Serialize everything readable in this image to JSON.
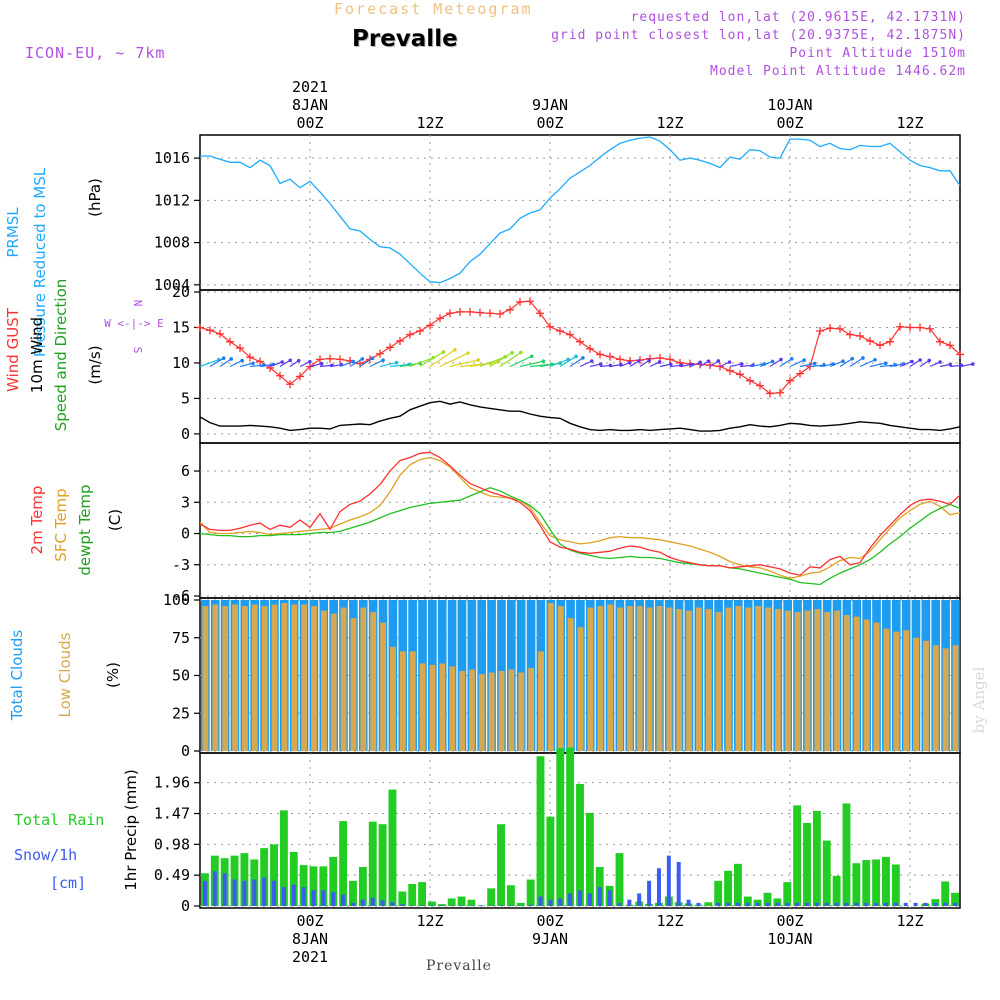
{
  "header": {
    "supertitle": "Forecast Meteogram",
    "station": "Prevalle",
    "model": "ICON-EU, ~ 7km",
    "info_requested": "requested lon,lat (20.9615E, 42.1731N)",
    "info_grid": "grid point closest lon,lat (20.9375E, 42.1875N)",
    "info_altitude": "Point Altitude 1510m",
    "info_model_altitude": "Model Point Altitude 1446.62m",
    "footer": "Prevalle",
    "watermark": "by Angel"
  },
  "colors": {
    "pressure": "#1eaaff",
    "gust": "#ff3030",
    "wind": "#000000",
    "temp": "#ff3030",
    "sfc": "#e0a020",
    "dewpt": "#20c020",
    "clouds_total": "#1e9cf0",
    "clouds_low": "#d8a850",
    "rain": "#22cc22",
    "snow": "#3a5cf0",
    "label_purple": "#b050e0",
    "grid": "#999999"
  },
  "time_axis": {
    "hours": [
      -11,
      65
    ],
    "top_ticks": [
      {
        "h": 0,
        "lines": [
          "2021",
          "8JAN",
          "00Z"
        ]
      },
      {
        "h": 12,
        "lines": [
          "12Z"
        ]
      },
      {
        "h": 24,
        "lines": [
          "9JAN",
          "00Z"
        ]
      },
      {
        "h": 36,
        "lines": [
          "12Z"
        ]
      },
      {
        "h": 48,
        "lines": [
          "10JAN",
          "00Z"
        ]
      },
      {
        "h": 60,
        "lines": [
          "12Z"
        ]
      }
    ],
    "bottom_ticks": [
      {
        "h": 0,
        "lines": [
          "00Z",
          "8JAN",
          "2021"
        ]
      },
      {
        "h": 12,
        "lines": [
          "12Z"
        ]
      },
      {
        "h": 24,
        "lines": [
          "00Z",
          "9JAN"
        ]
      },
      {
        "h": 36,
        "lines": [
          "12Z"
        ]
      },
      {
        "h": 48,
        "lines": [
          "00Z",
          "10JAN"
        ]
      },
      {
        "h": 60,
        "lines": [
          "12Z"
        ]
      }
    ]
  },
  "chart_data": [
    {
      "type": "line",
      "id": "pressure",
      "title": "PRMSL Pressure Reduced to MSL",
      "label_lines": [
        "PRMSL",
        "Pressure Reduced to MSL"
      ],
      "ylabel": "(hPa)",
      "ylim": [
        1003.7,
        1018
      ],
      "yticks": [
        1004,
        1008,
        1012,
        1016
      ],
      "series": [
        {
          "name": "PRMSL",
          "x": [
            -11,
            -10,
            -9,
            -8,
            -7,
            -6,
            -5,
            -4,
            -3,
            -2,
            -1,
            0,
            1,
            2,
            3,
            4,
            5,
            6,
            7,
            8,
            9,
            10,
            11,
            12,
            13,
            14,
            15,
            16,
            17,
            18,
            19,
            20,
            21,
            22,
            23,
            24,
            25,
            26,
            27,
            28,
            29,
            30,
            31,
            32,
            33,
            34,
            35,
            36,
            37,
            38,
            39,
            40,
            41,
            42,
            43,
            44,
            45,
            46,
            47,
            48,
            49,
            50,
            51,
            52,
            53,
            54,
            55,
            56,
            57,
            58,
            59,
            60,
            61,
            62,
            63,
            64,
            65
          ],
          "values": [
            1016.2,
            1016.2,
            1015.9,
            1015.6,
            1015.6,
            1015.1,
            1015.8,
            1015.3,
            1013.6,
            1014.0,
            1013.2,
            1013.8,
            1012.8,
            1011.7,
            1010.5,
            1009.3,
            1009.1,
            1008.3,
            1007.6,
            1007.5,
            1006.9,
            1006.0,
            1005.1,
            1004.3,
            1004.2,
            1004.6,
            1005.1,
            1006.2,
            1006.9,
            1007.9,
            1008.9,
            1009.3,
            1010.3,
            1010.8,
            1011.1,
            1012.2,
            1013.1,
            1014.1,
            1014.7,
            1015.3,
            1016.1,
            1016.8,
            1017.4,
            1017.7,
            1017.9,
            1018.0,
            1017.6,
            1016.8,
            1015.8,
            1016.0,
            1015.8,
            1015.5,
            1015.1,
            1016.1,
            1015.9,
            1016.8,
            1016.7,
            1016.1,
            1016.0,
            1017.8,
            1017.8,
            1017.7,
            1017.1,
            1017.4,
            1016.9,
            1016.8,
            1017.2,
            1017.1,
            1017.1,
            1017.4,
            1016.6,
            1015.8,
            1015.3,
            1015.1,
            1014.8,
            1014.8,
            1013.4
          ]
        }
      ]
    },
    {
      "type": "line",
      "id": "wind",
      "title": "Wind GUST / 10m Wind Speed and Direction",
      "label_lines": [
        "Wind GUST",
        "10m Wind",
        "Speed and Direction"
      ],
      "ylabel": "(m/s)",
      "ylim": [
        -1,
        20
      ],
      "yticks": [
        0,
        5,
        10,
        15,
        20
      ],
      "compass": [
        "N",
        "W <-|-> E",
        "S"
      ],
      "barb_baseline": 9.5,
      "series": [
        {
          "name": "Wind GUST",
          "values": [
            15.0,
            14.6,
            14.1,
            13.0,
            12.1,
            10.8,
            10.2,
            9.3,
            8.2,
            7.0,
            8.1,
            9.5,
            10.5,
            10.6,
            10.5,
            10.3,
            9.9,
            10.5,
            11.3,
            12.2,
            13.1,
            14.0,
            14.5,
            15.3,
            16.3,
            17.0,
            17.2,
            17.2,
            17.1,
            17.0,
            16.9,
            17.5,
            18.6,
            18.7,
            17.0,
            15.1,
            14.5,
            14.0,
            13.0,
            12.0,
            11.2,
            10.9,
            10.5,
            10.3,
            10.4,
            10.6,
            10.7,
            10.5,
            10.0,
            9.9,
            9.8,
            9.7,
            9.5,
            8.9,
            8.4,
            7.5,
            6.8,
            5.7,
            5.8,
            7.5,
            8.5,
            9.5,
            14.5,
            14.9,
            14.8,
            14.0,
            13.8,
            13.1,
            12.5,
            13.0,
            15.1,
            15.0,
            15.0,
            14.8,
            13.0,
            12.5,
            11.2
          ]
        },
        {
          "name": "10m Wind",
          "values": [
            2.4,
            1.6,
            1.1,
            1.1,
            1.1,
            1.2,
            1.1,
            1.0,
            0.8,
            0.5,
            0.6,
            0.8,
            0.8,
            0.7,
            1.2,
            1.3,
            1.4,
            1.3,
            1.8,
            2.2,
            2.5,
            3.4,
            3.9,
            4.4,
            4.6,
            4.2,
            4.5,
            4.1,
            3.8,
            3.6,
            3.4,
            3.2,
            3.2,
            2.8,
            2.5,
            2.3,
            2.2,
            1.5,
            1.0,
            0.6,
            0.5,
            0.6,
            0.5,
            0.5,
            0.6,
            0.5,
            0.6,
            0.7,
            0.8,
            0.6,
            0.4,
            0.4,
            0.5,
            0.8,
            1.0,
            1.3,
            1.1,
            1.0,
            1.2,
            1.5,
            1.4,
            1.2,
            1.1,
            1.2,
            1.3,
            1.5,
            1.7,
            1.6,
            1.5,
            1.2,
            1.0,
            0.8,
            0.6,
            0.6,
            0.5,
            0.7,
            1.0
          ]
        }
      ]
    },
    {
      "type": "line",
      "id": "temperature",
      "title": "2m Temp / SFC Temp / dewpt Temp",
      "label_lines": [
        "2m Temp",
        "SFC Temp",
        "dewpt Temp"
      ],
      "ylabel": "(C)",
      "ylim": [
        -6,
        8.5
      ],
      "yticks": [
        -6,
        -3,
        0,
        3,
        6
      ],
      "series": [
        {
          "name": "2m Temp",
          "values": [
            0.9,
            0.4,
            0.3,
            0.3,
            0.5,
            0.8,
            1.0,
            0.4,
            0.8,
            0.6,
            1.3,
            0.6,
            1.9,
            0.4,
            2.1,
            2.8,
            3.1,
            3.8,
            4.7,
            6.0,
            7.0,
            7.3,
            7.7,
            7.8,
            7.3,
            6.5,
            5.6,
            4.8,
            4.4,
            4.0,
            3.7,
            3.4,
            3.0,
            2.2,
            0.8,
            -0.8,
            -1.3,
            -1.5,
            -1.8,
            -1.9,
            -1.8,
            -1.7,
            -1.4,
            -1.2,
            -1.3,
            -1.6,
            -1.8,
            -2.3,
            -2.6,
            -2.8,
            -3.0,
            -3.1,
            -3.1,
            -3.3,
            -3.2,
            -3.1,
            -3.0,
            -3.2,
            -3.4,
            -3.8,
            -4.0,
            -3.2,
            -3.3,
            -2.5,
            -2.2,
            -3.0,
            -2.8,
            -1.4,
            -0.2,
            0.8,
            1.8,
            2.7,
            3.2,
            3.3,
            3.1,
            2.8,
            3.7
          ]
        },
        {
          "name": "SFC Temp",
          "values": [
            1.1,
            0.1,
            0.0,
            0.0,
            0.1,
            0.2,
            0.1,
            -0.1,
            0.0,
            0.1,
            0.2,
            0.3,
            0.4,
            0.5,
            0.9,
            1.3,
            1.6,
            2.0,
            2.7,
            4.0,
            5.6,
            6.6,
            7.1,
            7.3,
            7.0,
            6.4,
            5.4,
            4.4,
            4.0,
            3.6,
            3.5,
            3.4,
            3.2,
            2.5,
            1.1,
            -0.2,
            -0.6,
            -0.8,
            -1.0,
            -0.9,
            -0.7,
            -0.4,
            -0.3,
            -0.4,
            -0.4,
            -0.5,
            -0.6,
            -0.8,
            -1.0,
            -1.2,
            -1.5,
            -1.8,
            -2.2,
            -2.7,
            -3.0,
            -3.2,
            -3.3,
            -3.6,
            -4.0,
            -4.3,
            -4.1,
            -3.8,
            -3.7,
            -3.2,
            -2.6,
            -2.3,
            -2.4,
            -1.7,
            -0.6,
            0.5,
            1.5,
            2.2,
            2.8,
            3.1,
            2.6,
            1.8,
            2.0
          ]
        },
        {
          "name": "dewpt Temp",
          "values": [
            0.0,
            -0.1,
            -0.2,
            -0.2,
            -0.3,
            -0.3,
            -0.2,
            -0.2,
            -0.1,
            -0.1,
            -0.1,
            0.0,
            0.1,
            0.1,
            0.2,
            0.5,
            0.8,
            1.1,
            1.5,
            1.9,
            2.2,
            2.5,
            2.7,
            2.9,
            3.0,
            3.1,
            3.2,
            3.6,
            4.0,
            4.4,
            4.1,
            3.6,
            3.2,
            2.7,
            1.9,
            0.4,
            -1.0,
            -1.6,
            -1.9,
            -2.1,
            -2.3,
            -2.4,
            -2.3,
            -2.2,
            -2.3,
            -2.3,
            -2.4,
            -2.6,
            -2.8,
            -2.9,
            -3.0,
            -3.1,
            -3.1,
            -3.3,
            -3.4,
            -3.6,
            -3.8,
            -4.0,
            -4.2,
            -4.4,
            -4.7,
            -4.8,
            -4.9,
            -4.3,
            -3.8,
            -3.4,
            -3.0,
            -2.5,
            -1.8,
            -1.0,
            -0.3,
            0.5,
            1.2,
            1.9,
            2.4,
            2.8,
            2.4
          ]
        }
      ]
    },
    {
      "type": "bar",
      "id": "clouds",
      "title": "Total Clouds / Low Clouds",
      "label_lines": [
        "Total Clouds",
        "Low Clouds"
      ],
      "ylabel": "(%)",
      "ylim": [
        0,
        100
      ],
      "yticks": [
        0,
        25,
        50,
        75,
        100
      ],
      "series": [
        {
          "name": "Total Clouds",
          "values": [
            100,
            100,
            100,
            100,
            100,
            100,
            100,
            100,
            100,
            100,
            100,
            100,
            100,
            100,
            100,
            100,
            100,
            100,
            100,
            100,
            100,
            100,
            100,
            100,
            100,
            100,
            100,
            100,
            100,
            100,
            100,
            100,
            100,
            100,
            100,
            100,
            100,
            100,
            100,
            100,
            100,
            100,
            100,
            100,
            100,
            100,
            100,
            100,
            100,
            100,
            100,
            100,
            100,
            100,
            100,
            100,
            100,
            100,
            100,
            100,
            100,
            100,
            100,
            100,
            100,
            100,
            100,
            100,
            100,
            100,
            100,
            100,
            100,
            100,
            100,
            100,
            100
          ]
        },
        {
          "name": "Low Clouds",
          "values": [
            96,
            97,
            96,
            97,
            96,
            97,
            96,
            97,
            98,
            97,
            97,
            96,
            93,
            91,
            95,
            88,
            95,
            92,
            85,
            69,
            66,
            66,
            58,
            57,
            58,
            56,
            53,
            54,
            51,
            52,
            53,
            54,
            52,
            55,
            66,
            98,
            96,
            88,
            82,
            95,
            96,
            97,
            95,
            96,
            96,
            95,
            96,
            95,
            94,
            93,
            95,
            94,
            92,
            95,
            96,
            95,
            96,
            95,
            94,
            93,
            92,
            93,
            94,
            92,
            93,
            90,
            89,
            87,
            85,
            81,
            79,
            80,
            75,
            73,
            70,
            68,
            70
          ]
        }
      ]
    },
    {
      "type": "bar",
      "id": "precip",
      "title": "Total Rain / Snow/1h [cm]",
      "label_lines": [
        "Total  Rain",
        "Snow/1h",
        "[cm]"
      ],
      "ylabel": "1hr Precip (mm)",
      "ylim": [
        0,
        2.4
      ],
      "yticks": [
        "0",
        "0.49",
        "0.98",
        "1.47",
        "1.96"
      ],
      "ytick_values": [
        0,
        0.49,
        0.98,
        1.47,
        1.96
      ],
      "series": [
        {
          "name": "Total Rain",
          "values": [
            0.52,
            0.8,
            0.76,
            0.8,
            0.84,
            0.74,
            0.92,
            0.98,
            1.52,
            0.86,
            0.65,
            0.63,
            0.63,
            0.78,
            1.35,
            0.4,
            0.62,
            1.34,
            1.3,
            1.85,
            0.23,
            0.35,
            0.38,
            0.07,
            0.03,
            0.12,
            0.15,
            0.1,
            0.01,
            0.28,
            1.3,
            0.33,
            0.05,
            0.42,
            2.38,
            1.42,
            2.51,
            2.52,
            1.94,
            1.48,
            0.62,
            0.32,
            0.84,
            0.02,
            0.07,
            0.03,
            0.05,
            0.15,
            0.06,
            0.04,
            0.02,
            0.06,
            0.4,
            0.56,
            0.67,
            0.15,
            0.1,
            0.21,
            0.12,
            0.38,
            1.6,
            1.32,
            1.51,
            1.04,
            0.48,
            1.63,
            0.68,
            0.73,
            0.74,
            0.78,
            0.66,
            0.0,
            0.0,
            0.04,
            0.11,
            0.39,
            0.21
          ]
        },
        {
          "name": "Snow/1h",
          "values": [
            0.4,
            0.55,
            0.52,
            0.42,
            0.4,
            0.42,
            0.45,
            0.4,
            0.3,
            0.34,
            0.3,
            0.25,
            0.25,
            0.22,
            0.18,
            0.05,
            0.1,
            0.13,
            0.09,
            0.06,
            0.03,
            0.01,
            0.01,
            0.01,
            0.01,
            0.01,
            0.01,
            0.01,
            0.01,
            0.01,
            0.01,
            0.01,
            0.01,
            0.02,
            0.15,
            0.1,
            0.12,
            0.2,
            0.25,
            0.2,
            0.3,
            0.25,
            0.05,
            0.1,
            0.2,
            0.4,
            0.6,
            0.8,
            0.7,
            0.1,
            0.05,
            0.0,
            0.05,
            0.05,
            0.05,
            0.05,
            0.05,
            0.05,
            0.05,
            0.05,
            0.05,
            0.05,
            0.05,
            0.05,
            0.05,
            0.05,
            0.05,
            0.05,
            0.05,
            0.05,
            0.05,
            0.05,
            0.05,
            0.05,
            0.05,
            0.05,
            0.05
          ]
        }
      ]
    }
  ]
}
